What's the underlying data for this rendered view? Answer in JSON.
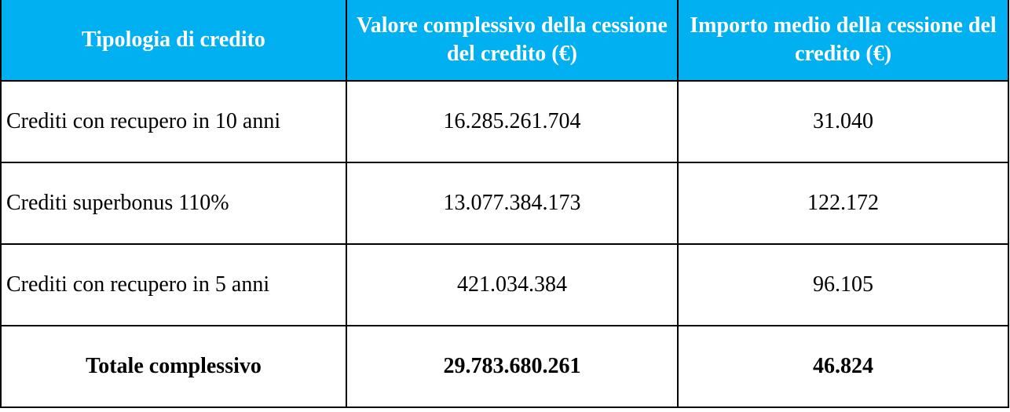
{
  "table": {
    "headers": [
      "Tipologia di credito",
      "Valore complessivo della cessione del credito (€)",
      "Importo medio della cessione del credito (€)"
    ],
    "rows": [
      {
        "label": "Crediti con recupero in 10 anni",
        "valore": "16.285.261.704",
        "importo": "31.040"
      },
      {
        "label": "Crediti superbonus 110%",
        "valore": "13.077.384.173",
        "importo": "122.172"
      },
      {
        "label": "Crediti con recupero in 5 anni",
        "valore": "421.034.384",
        "importo": "96.105"
      }
    ],
    "total": {
      "label": "Totale complessivo",
      "valore": "29.783.680.261",
      "importo": "46.824"
    }
  },
  "colors": {
    "header_background": "#00b0f0",
    "header_text": "#ffffff",
    "border": "#000000"
  }
}
